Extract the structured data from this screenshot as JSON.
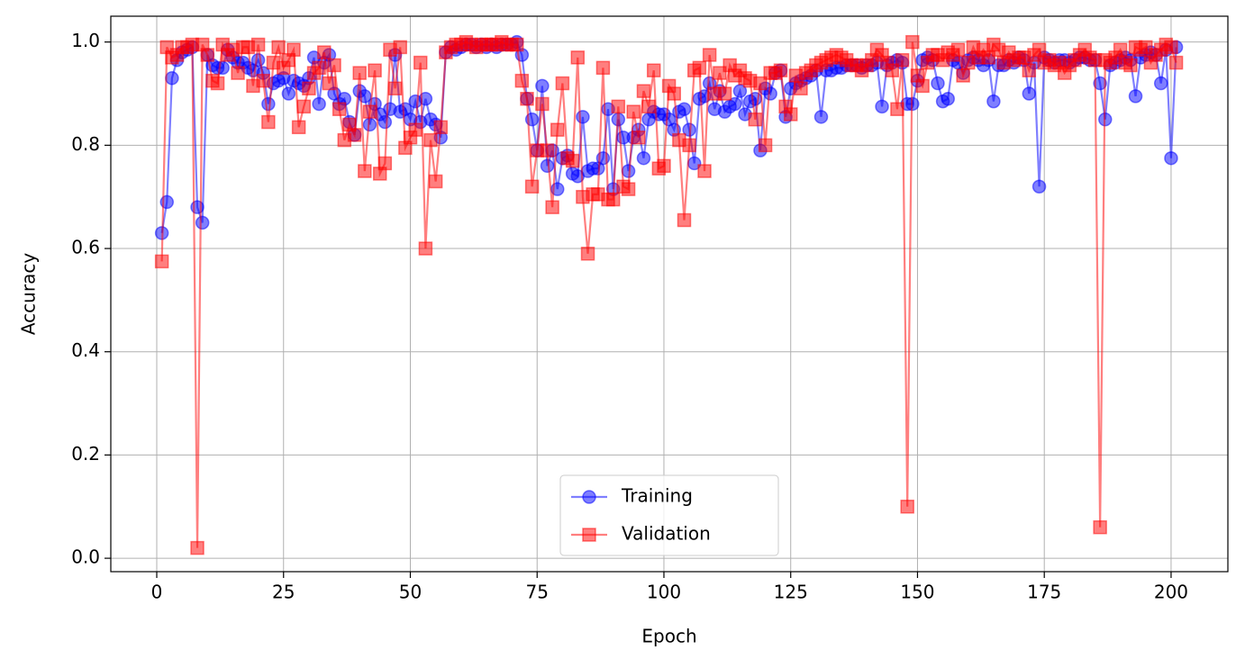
{
  "chart_data": {
    "type": "line",
    "xlabel": "Epoch",
    "ylabel": "Accuracy",
    "x": [
      1,
      2,
      3,
      4,
      5,
      6,
      7,
      8,
      9,
      10,
      11,
      12,
      13,
      14,
      15,
      16,
      17,
      18,
      19,
      20,
      21,
      22,
      23,
      24,
      25,
      26,
      27,
      28,
      29,
      30,
      31,
      32,
      33,
      34,
      35,
      36,
      37,
      38,
      39,
      40,
      41,
      42,
      43,
      44,
      45,
      46,
      47,
      48,
      49,
      50,
      51,
      52,
      53,
      54,
      55,
      56,
      57,
      58,
      59,
      60,
      61,
      62,
      63,
      64,
      65,
      66,
      67,
      68,
      69,
      70,
      71,
      72,
      73,
      74,
      75,
      76,
      77,
      78,
      79,
      80,
      81,
      82,
      83,
      84,
      85,
      86,
      87,
      88,
      89,
      90,
      91,
      92,
      93,
      94,
      95,
      96,
      97,
      98,
      99,
      100,
      101,
      102,
      103,
      104,
      105,
      106,
      107,
      108,
      109,
      110,
      111,
      112,
      113,
      114,
      115,
      116,
      117,
      118,
      119,
      120,
      121,
      122,
      123,
      124,
      125,
      126,
      127,
      128,
      129,
      130,
      131,
      132,
      133,
      134,
      135,
      136,
      137,
      138,
      139,
      140,
      141,
      142,
      143,
      144,
      145,
      146,
      147,
      148,
      149,
      150,
      151,
      152,
      153,
      154,
      155,
      156,
      157,
      158,
      159,
      160,
      161,
      162,
      163,
      164,
      165,
      166,
      167,
      168,
      169,
      170,
      171,
      172,
      173,
      174,
      175,
      176,
      177,
      178,
      179,
      180,
      181,
      182,
      183,
      184,
      185,
      186,
      187,
      188,
      189,
      190,
      191,
      192,
      193,
      194,
      195,
      196,
      197,
      198,
      199,
      200,
      201
    ],
    "series": [
      {
        "name": "Training",
        "color": "blue",
        "marker": "circle",
        "values": [
          0.63,
          0.69,
          0.93,
          0.965,
          0.98,
          0.985,
          0.99,
          0.68,
          0.65,
          0.975,
          0.955,
          0.95,
          0.95,
          0.985,
          0.97,
          0.96,
          0.96,
          0.95,
          0.945,
          0.965,
          0.94,
          0.88,
          0.92,
          0.925,
          0.93,
          0.9,
          0.925,
          0.92,
          0.915,
          0.93,
          0.97,
          0.88,
          0.96,
          0.975,
          0.9,
          0.88,
          0.89,
          0.845,
          0.82,
          0.905,
          0.895,
          0.84,
          0.88,
          0.86,
          0.845,
          0.87,
          0.975,
          0.865,
          0.87,
          0.85,
          0.885,
          0.845,
          0.89,
          0.85,
          0.84,
          0.815,
          0.98,
          0.99,
          0.985,
          0.99,
          0.995,
          0.995,
          0.99,
          0.995,
          0.99,
          0.995,
          0.99,
          0.995,
          0.995,
          0.995,
          1.0,
          0.975,
          0.89,
          0.85,
          0.79,
          0.915,
          0.76,
          0.79,
          0.715,
          0.775,
          0.78,
          0.745,
          0.74,
          0.855,
          0.75,
          0.755,
          0.755,
          0.775,
          0.87,
          0.715,
          0.85,
          0.815,
          0.75,
          0.815,
          0.83,
          0.775,
          0.85,
          0.865,
          0.86,
          0.86,
          0.85,
          0.83,
          0.865,
          0.87,
          0.83,
          0.765,
          0.89,
          0.895,
          0.92,
          0.87,
          0.905,
          0.865,
          0.875,
          0.88,
          0.905,
          0.86,
          0.885,
          0.89,
          0.79,
          0.91,
          0.9,
          0.94,
          0.945,
          0.855,
          0.91,
          0.92,
          0.925,
          0.93,
          0.935,
          0.945,
          0.855,
          0.945,
          0.945,
          0.95,
          0.95,
          0.955,
          0.955,
          0.955,
          0.95,
          0.955,
          0.955,
          0.96,
          0.875,
          0.955,
          0.96,
          0.965,
          0.96,
          0.88,
          0.88,
          0.925,
          0.965,
          0.97,
          0.965,
          0.92,
          0.885,
          0.89,
          0.965,
          0.96,
          0.94,
          0.965,
          0.97,
          0.965,
          0.955,
          0.965,
          0.885,
          0.955,
          0.955,
          0.965,
          0.96,
          0.97,
          0.965,
          0.9,
          0.96,
          0.72,
          0.97,
          0.965,
          0.96,
          0.965,
          0.965,
          0.96,
          0.965,
          0.97,
          0.97,
          0.965,
          0.965,
          0.92,
          0.85,
          0.955,
          0.96,
          0.965,
          0.97,
          0.965,
          0.895,
          0.97,
          0.975,
          0.98,
          0.975,
          0.92,
          0.985,
          0.775,
          0.99
        ]
      },
      {
        "name": "Validation",
        "color": "red",
        "marker": "square",
        "values": [
          0.575,
          0.99,
          0.97,
          0.975,
          0.99,
          0.99,
          0.995,
          0.02,
          0.995,
          0.975,
          0.925,
          0.92,
          0.995,
          0.975,
          0.985,
          0.94,
          0.99,
          0.99,
          0.915,
          0.995,
          0.925,
          0.845,
          0.96,
          0.99,
          0.95,
          0.965,
          0.985,
          0.835,
          0.875,
          0.91,
          0.94,
          0.95,
          0.98,
          0.92,
          0.955,
          0.87,
          0.81,
          0.84,
          0.82,
          0.94,
          0.75,
          0.865,
          0.945,
          0.745,
          0.765,
          0.985,
          0.91,
          0.99,
          0.795,
          0.815,
          0.83,
          0.96,
          0.6,
          0.81,
          0.73,
          0.835,
          0.98,
          0.99,
          0.995,
          0.995,
          1.0,
          0.995,
          0.99,
          0.995,
          0.995,
          0.995,
          0.995,
          1.0,
          0.995,
          0.995,
          0.995,
          0.925,
          0.89,
          0.72,
          0.79,
          0.88,
          0.79,
          0.68,
          0.83,
          0.92,
          0.775,
          0.77,
          0.97,
          0.7,
          0.59,
          0.705,
          0.705,
          0.95,
          0.695,
          0.695,
          0.875,
          0.72,
          0.715,
          0.865,
          0.815,
          0.905,
          0.875,
          0.945,
          0.755,
          0.76,
          0.915,
          0.9,
          0.81,
          0.655,
          0.8,
          0.945,
          0.95,
          0.75,
          0.975,
          0.9,
          0.94,
          0.9,
          0.955,
          0.935,
          0.945,
          0.93,
          0.925,
          0.85,
          0.92,
          0.8,
          0.94,
          0.94,
          0.945,
          0.875,
          0.86,
          0.935,
          0.91,
          0.94,
          0.945,
          0.955,
          0.96,
          0.965,
          0.97,
          0.975,
          0.97,
          0.965,
          0.955,
          0.955,
          0.945,
          0.955,
          0.965,
          0.985,
          0.975,
          0.96,
          0.945,
          0.87,
          0.965,
          0.1,
          1.0,
          0.935,
          0.915,
          0.96,
          0.975,
          0.975,
          0.965,
          0.98,
          0.975,
          0.985,
          0.935,
          0.96,
          0.99,
          0.97,
          0.985,
          0.97,
          0.995,
          0.985,
          0.96,
          0.98,
          0.965,
          0.97,
          0.97,
          0.945,
          0.975,
          0.985,
          0.96,
          0.965,
          0.955,
          0.96,
          0.94,
          0.955,
          0.965,
          0.975,
          0.985,
          0.97,
          0.965,
          0.06,
          0.965,
          0.96,
          0.97,
          0.985,
          0.96,
          0.955,
          0.99,
          0.985,
          0.99,
          0.96,
          0.975,
          0.985,
          0.995,
          0.99,
          0.96
        ]
      }
    ],
    "xlim": [
      -9.06,
      211.2
    ],
    "ylim": [
      -0.026,
      1.05
    ],
    "xticks": [
      0,
      25,
      50,
      75,
      100,
      125,
      150,
      175,
      200
    ],
    "yticks": [
      {
        "value": 0,
        "label": "0.0"
      },
      0.2,
      0.4,
      0.6,
      0.8,
      {
        "value": 1,
        "label": "1.0"
      }
    ],
    "grid": true,
    "legend": "lower center"
  }
}
